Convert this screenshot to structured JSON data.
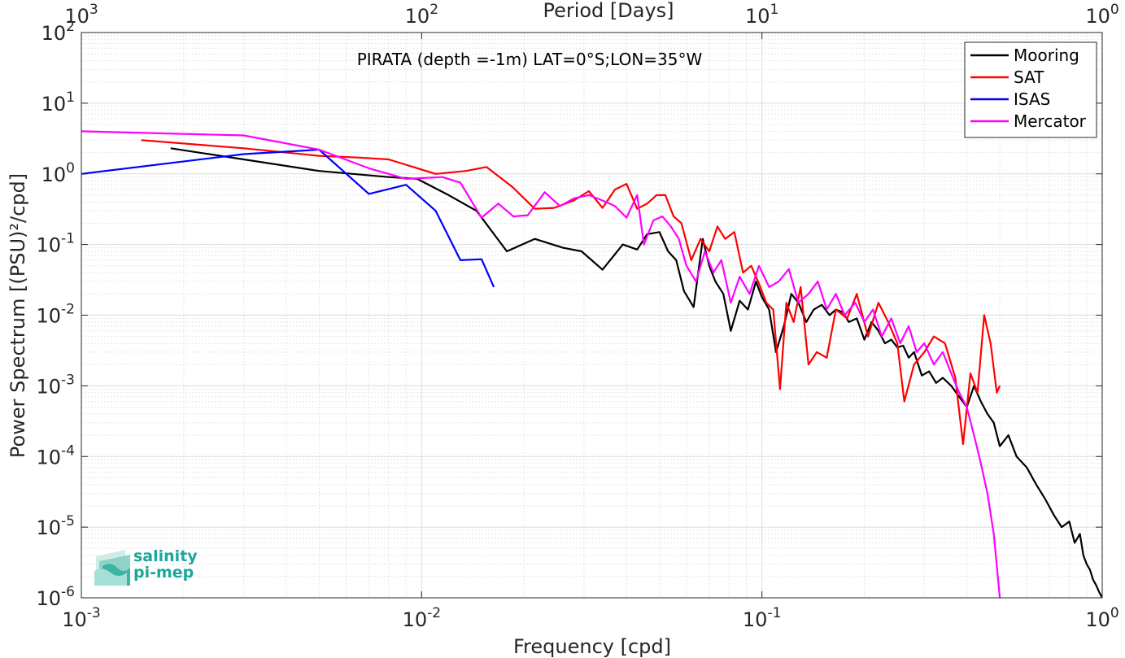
{
  "chart_data": {
    "type": "line",
    "title": "PIRATA (depth =-1m) LAT=0°S;LON=35°W",
    "xlabel": "Frequency [cpd]",
    "ylabel": "Power Spectrum [(PSU)²/cpd]",
    "x2label": "Period [Days]",
    "xscale": "log",
    "yscale": "log",
    "xlim": [
      0.001,
      1
    ],
    "ylim": [
      1e-06,
      100
    ],
    "grid": true,
    "legend_position": "top-right",
    "x_ticks": [
      {
        "value": 0.001,
        "base": "10",
        "exp": "-3"
      },
      {
        "value": 0.01,
        "base": "10",
        "exp": "-2"
      },
      {
        "value": 0.1,
        "base": "10",
        "exp": "-1"
      },
      {
        "value": 1,
        "base": "10",
        "exp": "0"
      }
    ],
    "top_ticks": [
      {
        "value": 0.001,
        "base": "10",
        "exp": "3"
      },
      {
        "value": 0.01,
        "base": "10",
        "exp": "2"
      },
      {
        "value": 0.1,
        "base": "10",
        "exp": "1"
      },
      {
        "value": 1,
        "base": "10",
        "exp": "0"
      }
    ],
    "y_ticks": [
      {
        "value": 1e-06,
        "base": "10",
        "exp": "-6"
      },
      {
        "value": 1e-05,
        "base": "10",
        "exp": "-5"
      },
      {
        "value": 0.0001,
        "base": "10",
        "exp": "-4"
      },
      {
        "value": 0.001,
        "base": "10",
        "exp": "-3"
      },
      {
        "value": 0.01,
        "base": "10",
        "exp": "-2"
      },
      {
        "value": 0.1,
        "base": "10",
        "exp": "-1"
      },
      {
        "value": 1,
        "base": "10",
        "exp": "0"
      },
      {
        "value": 10,
        "base": "10",
        "exp": "1"
      },
      {
        "value": 100,
        "base": "10",
        "exp": "2"
      }
    ],
    "series": [
      {
        "name": "Mooring",
        "color": "#000000",
        "x": [
          0.00183,
          0.003,
          0.005,
          0.008,
          0.0097,
          0.012,
          0.0145,
          0.0178,
          0.0215,
          0.026,
          0.0295,
          0.034,
          0.039,
          0.043,
          0.046,
          0.05,
          0.053,
          0.056,
          0.059,
          0.063,
          0.067,
          0.07,
          0.073,
          0.077,
          0.081,
          0.086,
          0.091,
          0.096,
          0.1,
          0.105,
          0.11,
          0.116,
          0.122,
          0.128,
          0.135,
          0.142,
          0.15,
          0.158,
          0.165,
          0.173,
          0.18,
          0.19,
          0.2,
          0.21,
          0.22,
          0.23,
          0.24,
          0.25,
          0.26,
          0.27,
          0.28,
          0.295,
          0.31,
          0.325,
          0.34,
          0.36,
          0.38,
          0.4,
          0.42,
          0.44,
          0.46,
          0.48,
          0.5,
          0.53,
          0.56,
          0.6,
          0.64,
          0.68,
          0.72,
          0.76,
          0.8,
          0.83,
          0.86,
          0.88,
          0.9,
          0.92,
          0.94,
          0.96,
          0.98,
          1.0
        ],
        "y": [
          2.3,
          1.6,
          1.1,
          0.9,
          0.85,
          0.5,
          0.3,
          0.08,
          0.12,
          0.09,
          0.08,
          0.044,
          0.1,
          0.085,
          0.14,
          0.15,
          0.08,
          0.06,
          0.022,
          0.013,
          0.12,
          0.05,
          0.03,
          0.02,
          0.006,
          0.016,
          0.012,
          0.03,
          0.018,
          0.012,
          0.003,
          0.007,
          0.02,
          0.015,
          0.008,
          0.012,
          0.014,
          0.01,
          0.012,
          0.011,
          0.008,
          0.009,
          0.0045,
          0.008,
          0.006,
          0.004,
          0.0045,
          0.0035,
          0.0037,
          0.0025,
          0.003,
          0.0014,
          0.0016,
          0.0011,
          0.0013,
          0.001,
          0.0007,
          0.0005,
          0.001,
          0.0006,
          0.0004,
          0.0003,
          0.00014,
          0.0002,
          0.0001,
          7e-05,
          4e-05,
          2.5e-05,
          1.5e-05,
          1e-05,
          1.2e-05,
          6e-06,
          8e-06,
          4e-06,
          3e-06,
          2.5e-06,
          1.8e-06,
          1.5e-06,
          1.2e-06,
          1e-06
        ]
      },
      {
        "name": "SAT",
        "color": "#ff0000",
        "x": [
          0.0015,
          0.003,
          0.005,
          0.0065,
          0.008,
          0.011,
          0.0135,
          0.0155,
          0.0185,
          0.0215,
          0.0245,
          0.028,
          0.031,
          0.034,
          0.037,
          0.04,
          0.043,
          0.046,
          0.049,
          0.052,
          0.055,
          0.058,
          0.062,
          0.066,
          0.07,
          0.074,
          0.078,
          0.083,
          0.088,
          0.093,
          0.098,
          0.103,
          0.108,
          0.113,
          0.118,
          0.124,
          0.13,
          0.137,
          0.145,
          0.155,
          0.165,
          0.178,
          0.19,
          0.205,
          0.22,
          0.235,
          0.25,
          0.262,
          0.28,
          0.3,
          0.32,
          0.345,
          0.37,
          0.39,
          0.41,
          0.43,
          0.45,
          0.47,
          0.49,
          0.5
        ],
        "y": [
          3.0,
          2.3,
          1.8,
          1.7,
          1.6,
          1.0,
          1.1,
          1.25,
          0.65,
          0.32,
          0.33,
          0.42,
          0.57,
          0.33,
          0.6,
          0.72,
          0.32,
          0.38,
          0.5,
          0.5,
          0.25,
          0.2,
          0.06,
          0.12,
          0.08,
          0.18,
          0.12,
          0.15,
          0.04,
          0.05,
          0.028,
          0.015,
          0.012,
          0.0009,
          0.015,
          0.008,
          0.025,
          0.002,
          0.003,
          0.0025,
          0.012,
          0.009,
          0.02,
          0.005,
          0.015,
          0.008,
          0.004,
          0.0006,
          0.002,
          0.003,
          0.005,
          0.004,
          0.0013,
          0.00015,
          0.0015,
          0.0008,
          0.01,
          0.004,
          0.0008,
          0.001
        ]
      },
      {
        "name": "ISAS",
        "color": "#0000ff",
        "x": [
          0.001,
          0.003,
          0.005,
          0.007,
          0.009,
          0.011,
          0.013,
          0.015,
          0.0163
        ],
        "y": [
          1.0,
          1.9,
          2.2,
          0.52,
          0.7,
          0.3,
          0.06,
          0.062,
          0.025
        ]
      },
      {
        "name": "Mercator",
        "color": "#ff00ff",
        "x": [
          0.001,
          0.003,
          0.005,
          0.007,
          0.009,
          0.0115,
          0.013,
          0.015,
          0.0168,
          0.0186,
          0.0205,
          0.023,
          0.0255,
          0.028,
          0.031,
          0.034,
          0.037,
          0.04,
          0.043,
          0.045,
          0.048,
          0.051,
          0.054,
          0.057,
          0.06,
          0.064,
          0.068,
          0.072,
          0.076,
          0.081,
          0.086,
          0.092,
          0.098,
          0.105,
          0.112,
          0.12,
          0.128,
          0.137,
          0.146,
          0.155,
          0.165,
          0.175,
          0.188,
          0.2,
          0.212,
          0.225,
          0.24,
          0.255,
          0.27,
          0.285,
          0.3,
          0.32,
          0.34,
          0.36,
          0.38,
          0.4,
          0.42,
          0.44,
          0.46,
          0.48,
          0.5
        ],
        "y": [
          4.0,
          3.5,
          2.2,
          1.2,
          0.85,
          0.9,
          0.75,
          0.24,
          0.38,
          0.25,
          0.26,
          0.55,
          0.35,
          0.45,
          0.5,
          0.42,
          0.35,
          0.24,
          0.5,
          0.1,
          0.22,
          0.25,
          0.18,
          0.12,
          0.05,
          0.03,
          0.08,
          0.04,
          0.06,
          0.015,
          0.035,
          0.02,
          0.05,
          0.025,
          0.03,
          0.045,
          0.015,
          0.02,
          0.03,
          0.012,
          0.02,
          0.01,
          0.015,
          0.008,
          0.012,
          0.005,
          0.009,
          0.004,
          0.007,
          0.003,
          0.004,
          0.002,
          0.003,
          0.0015,
          0.0008,
          0.0005,
          0.0002,
          8e-05,
          3e-05,
          8e-06,
          1e-06
        ]
      }
    ]
  },
  "logo": {
    "line1": "salinity",
    "line2": "pi-mep"
  }
}
